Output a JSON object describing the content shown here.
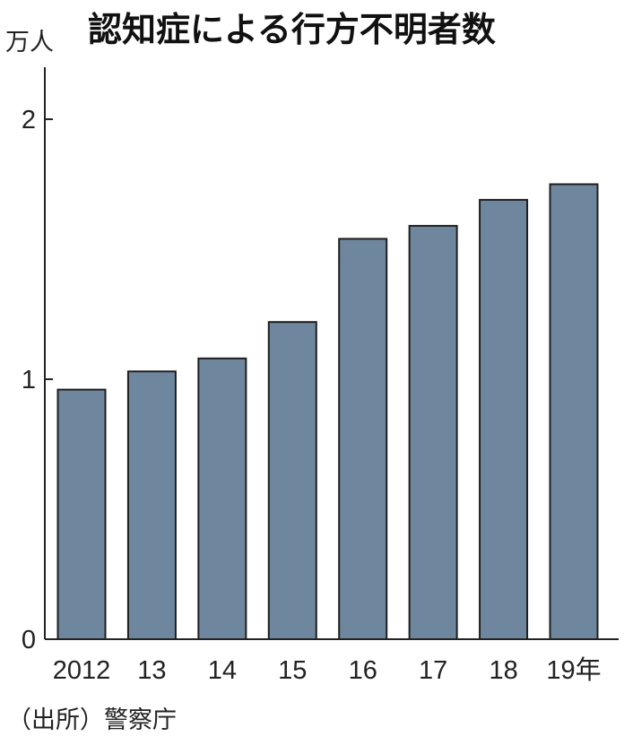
{
  "chart_data": {
    "type": "bar",
    "title": "認知症による行方不明者数",
    "unit_label": "万人",
    "categories": [
      "2012",
      "13",
      "14",
      "15",
      "16",
      "17",
      "18",
      "19年"
    ],
    "values": [
      0.96,
      1.03,
      1.08,
      1.22,
      1.54,
      1.59,
      1.69,
      1.75
    ],
    "ylim": [
      0,
      2.2
    ],
    "yticks": [
      "0",
      "1",
      "2"
    ],
    "ytick_values": [
      0,
      1,
      2
    ],
    "grid": false,
    "bar_color": "#6f879e",
    "bar_edge_color": "#1e1e1e",
    "source": "（出所）警察庁"
  }
}
